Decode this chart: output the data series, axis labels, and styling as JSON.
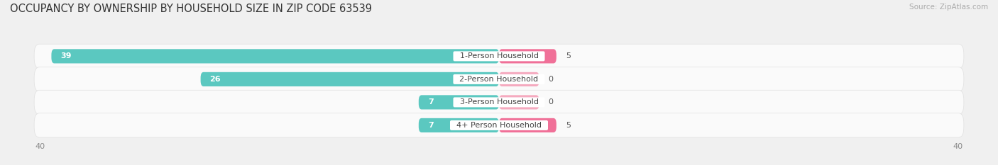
{
  "title": "OCCUPANCY BY OWNERSHIP BY HOUSEHOLD SIZE IN ZIP CODE 63539",
  "source": "Source: ZipAtlas.com",
  "categories": [
    "1-Person Household",
    "2-Person Household",
    "3-Person Household",
    "4+ Person Household"
  ],
  "owner_values": [
    39,
    26,
    7,
    7
  ],
  "renter_values": [
    5,
    0,
    0,
    5
  ],
  "owner_color": "#5BC8C0",
  "renter_color": "#F07098",
  "renter_stub_color": "#F5AABF",
  "background_color": "#f0f0f0",
  "bar_background": "#fafafa",
  "bar_border_color": "#e0e0e0",
  "axis_max": 40,
  "bar_height": 0.62,
  "title_fontsize": 10.5,
  "source_fontsize": 7.5,
  "label_fontsize": 8,
  "tick_fontsize": 8,
  "legend_fontsize": 8
}
